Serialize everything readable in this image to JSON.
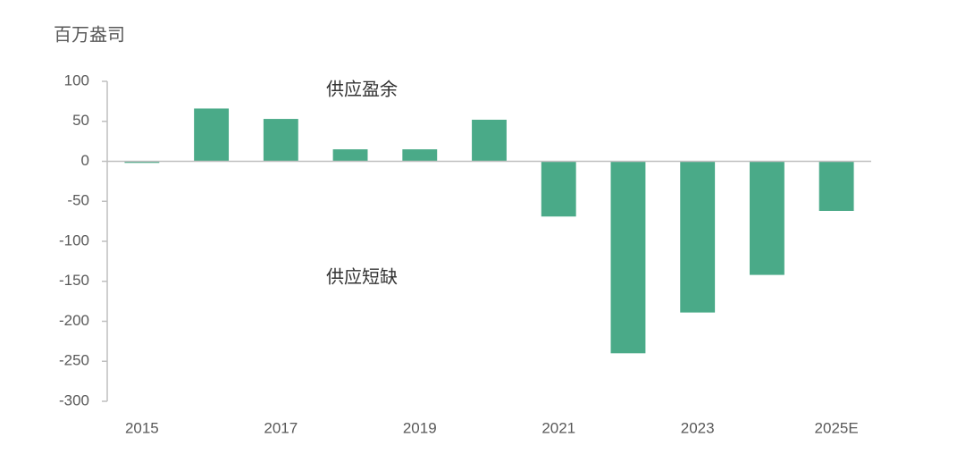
{
  "chart_data": {
    "type": "bar",
    "y_label": "百万盎司",
    "categories": [
      "2015",
      null,
      "2017",
      null,
      "2019",
      null,
      "2021",
      null,
      "2023",
      null,
      "2025E"
    ],
    "values": [
      -2,
      66,
      53,
      15,
      15,
      52,
      -69,
      -240,
      -189,
      -142,
      -62
    ],
    "color": "#4aaa88",
    "ylim": [
      -300,
      100
    ],
    "yticks": [
      -300,
      -250,
      -200,
      -150,
      -100,
      -50,
      0,
      50,
      100
    ],
    "grid": false,
    "annotations": [
      "供应盈余",
      "供应短缺"
    ]
  }
}
